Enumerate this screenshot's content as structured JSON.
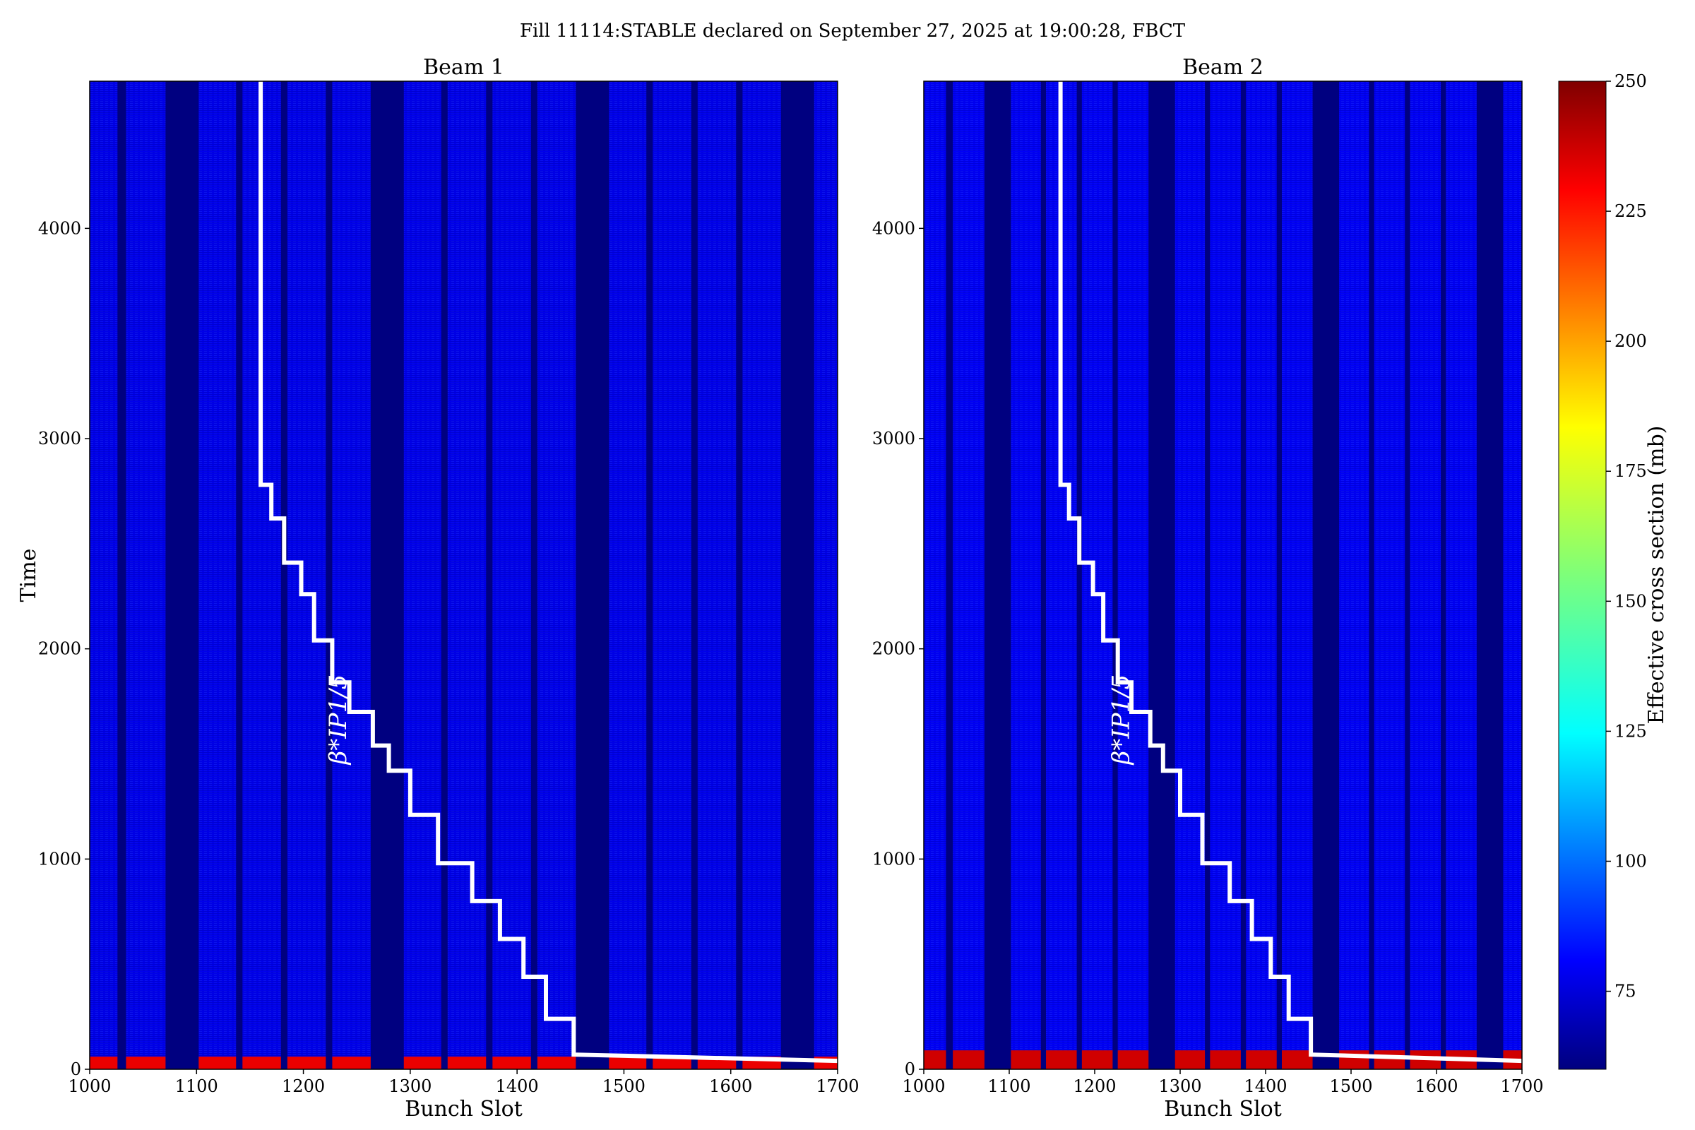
{
  "title": "Fill 11114:STABLE declared on September 27, 2025 at 19:00:28, FBCT",
  "colorbar": {
    "label": "Effective cross section (mb)",
    "range": [
      60,
      250
    ],
    "ticks": [
      75,
      100,
      125,
      150,
      175,
      200,
      225,
      250
    ],
    "colormap": "jet"
  },
  "chart_data": [
    {
      "type": "heatmap",
      "title": "Beam 1",
      "xlabel": "Bunch Slot",
      "ylabel": "Time",
      "xlim": [
        1000,
        1700
      ],
      "ylim": [
        0,
        4700
      ],
      "xticks": [
        1000,
        1100,
        1200,
        1300,
        1400,
        1500,
        1600,
        1700
      ],
      "yticks": [
        0,
        1000,
        2000,
        3000,
        4000
      ],
      "background_value": 80,
      "empty_value": 60,
      "empty_slot_ranges": [
        [
          1026,
          1034
        ],
        [
          1071,
          1102
        ],
        [
          1137,
          1143
        ],
        [
          1179,
          1185
        ],
        [
          1221,
          1227
        ],
        [
          1263,
          1294
        ],
        [
          1329,
          1335
        ],
        [
          1371,
          1377
        ],
        [
          1413,
          1419
        ],
        [
          1455,
          1486
        ],
        [
          1521,
          1527
        ],
        [
          1563,
          1569
        ],
        [
          1605,
          1611
        ],
        [
          1647,
          1678
        ]
      ],
      "early_high_band": {
        "time_range": [
          0,
          60
        ],
        "value": 230
      },
      "annotation": "β*IP1/5",
      "annotation_pos": {
        "x": 1240,
        "y": 1450
      },
      "overlay_line": {
        "color": "#ffffff",
        "x": [
          1160,
          1160,
          1170,
          1170,
          1182,
          1182,
          1198,
          1198,
          1210,
          1210,
          1227,
          1227,
          1243,
          1243,
          1265,
          1265,
          1280,
          1280,
          1300,
          1300,
          1326,
          1326,
          1358,
          1358,
          1384,
          1384,
          1406,
          1406,
          1427,
          1427,
          1453,
          1453,
          1700
        ],
        "y": [
          4700,
          2780,
          2780,
          2620,
          2620,
          2410,
          2410,
          2260,
          2260,
          2040,
          2040,
          1840,
          1840,
          1700,
          1700,
          1540,
          1540,
          1420,
          1420,
          1210,
          1210,
          980,
          980,
          800,
          800,
          620,
          620,
          440,
          440,
          240,
          240,
          70,
          40
        ]
      }
    },
    {
      "type": "heatmap",
      "title": "Beam 2",
      "xlabel": "Bunch Slot",
      "ylabel": "",
      "xlim": [
        1000,
        1700
      ],
      "ylim": [
        0,
        4700
      ],
      "xticks": [
        1000,
        1100,
        1200,
        1300,
        1400,
        1500,
        1600,
        1700
      ],
      "yticks": [
        0,
        1000,
        2000,
        3000,
        4000
      ],
      "background_value": 82,
      "empty_value": 60,
      "empty_slot_ranges": [
        [
          1026,
          1034
        ],
        [
          1071,
          1102
        ],
        [
          1137,
          1143
        ],
        [
          1179,
          1185
        ],
        [
          1221,
          1227
        ],
        [
          1263,
          1294
        ],
        [
          1329,
          1335
        ],
        [
          1371,
          1377
        ],
        [
          1413,
          1419
        ],
        [
          1455,
          1486
        ],
        [
          1521,
          1527
        ],
        [
          1563,
          1569
        ],
        [
          1605,
          1611
        ],
        [
          1647,
          1678
        ]
      ],
      "early_high_band": {
        "time_range": [
          0,
          90
        ],
        "value": 235
      },
      "annotation": "β*IP1/5",
      "annotation_pos": {
        "x": 1240,
        "y": 1450
      },
      "overlay_line": {
        "color": "#ffffff",
        "x": [
          1160,
          1160,
          1170,
          1170,
          1182,
          1182,
          1198,
          1198,
          1210,
          1210,
          1227,
          1227,
          1243,
          1243,
          1265,
          1265,
          1280,
          1280,
          1300,
          1300,
          1326,
          1326,
          1358,
          1358,
          1384,
          1384,
          1406,
          1406,
          1427,
          1427,
          1453,
          1453,
          1700
        ],
        "y": [
          4700,
          2780,
          2780,
          2620,
          2620,
          2410,
          2410,
          2260,
          2260,
          2040,
          2040,
          1840,
          1840,
          1700,
          1700,
          1540,
          1540,
          1420,
          1420,
          1210,
          1210,
          980,
          980,
          800,
          800,
          620,
          620,
          440,
          440,
          240,
          240,
          70,
          40
        ]
      }
    }
  ]
}
